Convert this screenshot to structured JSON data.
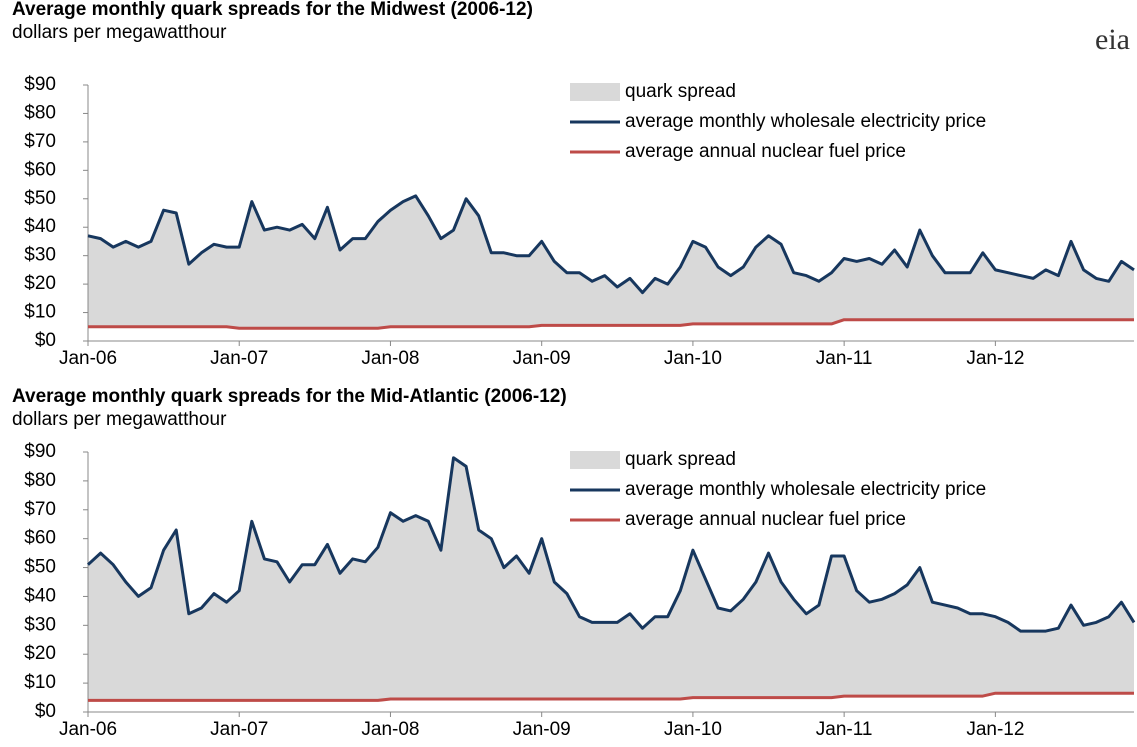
{
  "logo": "eia",
  "chart_data": [
    {
      "type": "area-line",
      "title": "Average monthly quark spreads for the Midwest  (2006-12)",
      "subtitle": "dollars per megawatthour",
      "categories": [
        "Jan-06",
        null,
        null,
        null,
        null,
        null,
        null,
        null,
        null,
        null,
        null,
        null,
        "Jan-07",
        null,
        null,
        null,
        null,
        null,
        null,
        null,
        null,
        null,
        null,
        null,
        "Jan-08",
        null,
        null,
        null,
        null,
        null,
        null,
        null,
        null,
        null,
        null,
        null,
        "Jan-09",
        null,
        null,
        null,
        null,
        null,
        null,
        null,
        null,
        null,
        null,
        null,
        "Jan-10",
        null,
        null,
        null,
        null,
        null,
        null,
        null,
        null,
        null,
        null,
        null,
        "Jan-11",
        null,
        null,
        null,
        null,
        null,
        null,
        null,
        null,
        null,
        null,
        null,
        "Jan-12",
        null,
        null,
        null,
        null,
        null,
        null,
        null,
        null,
        null,
        null,
        null
      ],
      "ylim": [
        0,
        90
      ],
      "yticks": [
        {
          "value": 0,
          "label": "$0"
        },
        {
          "value": 10,
          "label": "$10"
        },
        {
          "value": 20,
          "label": "$20"
        },
        {
          "value": 30,
          "label": "$30"
        },
        {
          "value": 40,
          "label": "$40"
        },
        {
          "value": 50,
          "label": "$50"
        },
        {
          "value": 60,
          "label": "$60"
        },
        {
          "value": 70,
          "label": "$70"
        },
        {
          "value": 80,
          "label": "$80"
        },
        {
          "value": 90,
          "label": "$90"
        }
      ],
      "series": [
        {
          "name": "quark spread",
          "color": "#d9d9d9",
          "kind": "area",
          "values": [
            32,
            31,
            28,
            30,
            28,
            30,
            41,
            40,
            22,
            26,
            29,
            28,
            28.5,
            44.5,
            34.5,
            35.5,
            34.5,
            36.5,
            31.5,
            42.5,
            27.5,
            31.5,
            31.5,
            37.5,
            41,
            44,
            46,
            39,
            31,
            34,
            45,
            39,
            26,
            26,
            25,
            25,
            29.5,
            22.5,
            18.5,
            18.5,
            15.5,
            17.5,
            13.5,
            16.5,
            11.5,
            16.5,
            14.5,
            20.5,
            29,
            27,
            20,
            17,
            20,
            27,
            31,
            28,
            18,
            17,
            15,
            18,
            21.5,
            20.5,
            21.5,
            19.5,
            24.5,
            18.5,
            31.5,
            22.5,
            16.5,
            16.5,
            16.5,
            23.5,
            17.5,
            16.5,
            15.5,
            14.5,
            17.5,
            15.5,
            27.5,
            17.5,
            14.5,
            13.5,
            20.5,
            17.5
          ]
        },
        {
          "name": "average monthly wholesale electricity price",
          "color": "#17375e",
          "kind": "line",
          "values": [
            37,
            36,
            33,
            35,
            33,
            35,
            46,
            45,
            27,
            31,
            34,
            33,
            33,
            49,
            39,
            40,
            39,
            41,
            36,
            47,
            32,
            36,
            36,
            42,
            46,
            49,
            51,
            44,
            36,
            39,
            50,
            44,
            31,
            31,
            30,
            30,
            35,
            28,
            24,
            24,
            21,
            23,
            19,
            22,
            17,
            22,
            20,
            26,
            35,
            33,
            26,
            23,
            26,
            33,
            37,
            34,
            24,
            23,
            21,
            24,
            29,
            28,
            29,
            27,
            32,
            26,
            39,
            30,
            24,
            24,
            24,
            31,
            25,
            24,
            23,
            22,
            25,
            23,
            35,
            25,
            22,
            21,
            28,
            25
          ]
        },
        {
          "name": "average annual  nuclear fuel price",
          "color": "#be4b48",
          "kind": "line",
          "values": [
            5,
            5,
            5,
            5,
            5,
            5,
            5,
            5,
            5,
            5,
            5,
            5,
            4.5,
            4.5,
            4.5,
            4.5,
            4.5,
            4.5,
            4.5,
            4.5,
            4.5,
            4.5,
            4.5,
            4.5,
            5,
            5,
            5,
            5,
            5,
            5,
            5,
            5,
            5,
            5,
            5,
            5,
            5.5,
            5.5,
            5.5,
            5.5,
            5.5,
            5.5,
            5.5,
            5.5,
            5.5,
            5.5,
            5.5,
            5.5,
            6,
            6,
            6,
            6,
            6,
            6,
            6,
            6,
            6,
            6,
            6,
            6,
            7.5,
            7.5,
            7.5,
            7.5,
            7.5,
            7.5,
            7.5,
            7.5,
            7.5,
            7.5,
            7.5,
            7.5,
            7.5,
            7.5,
            7.5,
            7.5,
            7.5,
            7.5,
            7.5,
            7.5,
            7.5,
            7.5,
            7.5,
            7.5
          ]
        }
      ]
    },
    {
      "type": "area-line",
      "title": "Average monthly quark spreads for the Mid-Atlantic  (2006-12)",
      "subtitle": "dollars per megawatthour",
      "categories": [
        "Jan-06",
        null,
        null,
        null,
        null,
        null,
        null,
        null,
        null,
        null,
        null,
        null,
        "Jan-07",
        null,
        null,
        null,
        null,
        null,
        null,
        null,
        null,
        null,
        null,
        null,
        "Jan-08",
        null,
        null,
        null,
        null,
        null,
        null,
        null,
        null,
        null,
        null,
        null,
        "Jan-09",
        null,
        null,
        null,
        null,
        null,
        null,
        null,
        null,
        null,
        null,
        null,
        "Jan-10",
        null,
        null,
        null,
        null,
        null,
        null,
        null,
        null,
        null,
        null,
        null,
        "Jan-11",
        null,
        null,
        null,
        null,
        null,
        null,
        null,
        null,
        null,
        null,
        null,
        "Jan-12",
        null,
        null,
        null,
        null,
        null,
        null,
        null,
        null,
        null,
        null,
        null
      ],
      "ylim": [
        0,
        90
      ],
      "yticks": [
        {
          "value": 0,
          "label": "$0"
        },
        {
          "value": 10,
          "label": "$10"
        },
        {
          "value": 20,
          "label": "$20"
        },
        {
          "value": 30,
          "label": "$30"
        },
        {
          "value": 40,
          "label": "$40"
        },
        {
          "value": 50,
          "label": "$50"
        },
        {
          "value": 60,
          "label": "$60"
        },
        {
          "value": 70,
          "label": "$70"
        },
        {
          "value": 80,
          "label": "$80"
        },
        {
          "value": 90,
          "label": "$90"
        }
      ],
      "series": [
        {
          "name": "quark spread",
          "color": "#d9d9d9",
          "kind": "area",
          "values": [
            47,
            51,
            47,
            41,
            36,
            39,
            52,
            59,
            30,
            32,
            37,
            34,
            38,
            62,
            49,
            48,
            41,
            47,
            47,
            54,
            44,
            49,
            48,
            53,
            64.5,
            61.5,
            63.5,
            61.5,
            51.5,
            83.5,
            80.5,
            58.5,
            55.5,
            45.5,
            49.5,
            43.5,
            55.5,
            40.5,
            36.5,
            28.5,
            26.5,
            26.5,
            26.5,
            29.5,
            24.5,
            28.5,
            28.5,
            37.5,
            51,
            41,
            31,
            30,
            34,
            40,
            50,
            40,
            34,
            29,
            32,
            49,
            48.5,
            36.5,
            32.5,
            33.5,
            35.5,
            38.5,
            44.5,
            32.5,
            31.5,
            30.5,
            28.5,
            28.5,
            26.5,
            24.5,
            21.5,
            21.5,
            21.5,
            22.5,
            30.5,
            23.5,
            24.5,
            26.5,
            31.5,
            24.5
          ]
        },
        {
          "name": "average monthly wholesale electricity price",
          "color": "#17375e",
          "kind": "line",
          "values": [
            51,
            55,
            51,
            45,
            40,
            43,
            56,
            63,
            34,
            36,
            41,
            38,
            42,
            66,
            53,
            52,
            45,
            51,
            51,
            58,
            48,
            53,
            52,
            57,
            69,
            66,
            68,
            66,
            56,
            88,
            85,
            63,
            60,
            50,
            54,
            48,
            60,
            45,
            41,
            33,
            31,
            31,
            31,
            34,
            29,
            33,
            33,
            42,
            56,
            46,
            36,
            35,
            39,
            45,
            55,
            45,
            39,
            34,
            37,
            54,
            54,
            42,
            38,
            39,
            41,
            44,
            50,
            38,
            37,
            36,
            34,
            34,
            33,
            31,
            28,
            28,
            28,
            29,
            37,
            30,
            31,
            33,
            38,
            31
          ]
        },
        {
          "name": "average annual  nuclear fuel price",
          "color": "#be4b48",
          "kind": "line",
          "values": [
            4,
            4,
            4,
            4,
            4,
            4,
            4,
            4,
            4,
            4,
            4,
            4,
            4,
            4,
            4,
            4,
            4,
            4,
            4,
            4,
            4,
            4,
            4,
            4,
            4.5,
            4.5,
            4.5,
            4.5,
            4.5,
            4.5,
            4.5,
            4.5,
            4.5,
            4.5,
            4.5,
            4.5,
            4.5,
            4.5,
            4.5,
            4.5,
            4.5,
            4.5,
            4.5,
            4.5,
            4.5,
            4.5,
            4.5,
            4.5,
            5,
            5,
            5,
            5,
            5,
            5,
            5,
            5,
            5,
            5,
            5,
            5,
            5.5,
            5.5,
            5.5,
            5.5,
            5.5,
            5.5,
            5.5,
            5.5,
            5.5,
            5.5,
            5.5,
            5.5,
            6.5,
            6.5,
            6.5,
            6.5,
            6.5,
            6.5,
            6.5,
            6.5,
            6.5,
            6.5,
            6.5,
            6.5
          ]
        }
      ]
    }
  ]
}
